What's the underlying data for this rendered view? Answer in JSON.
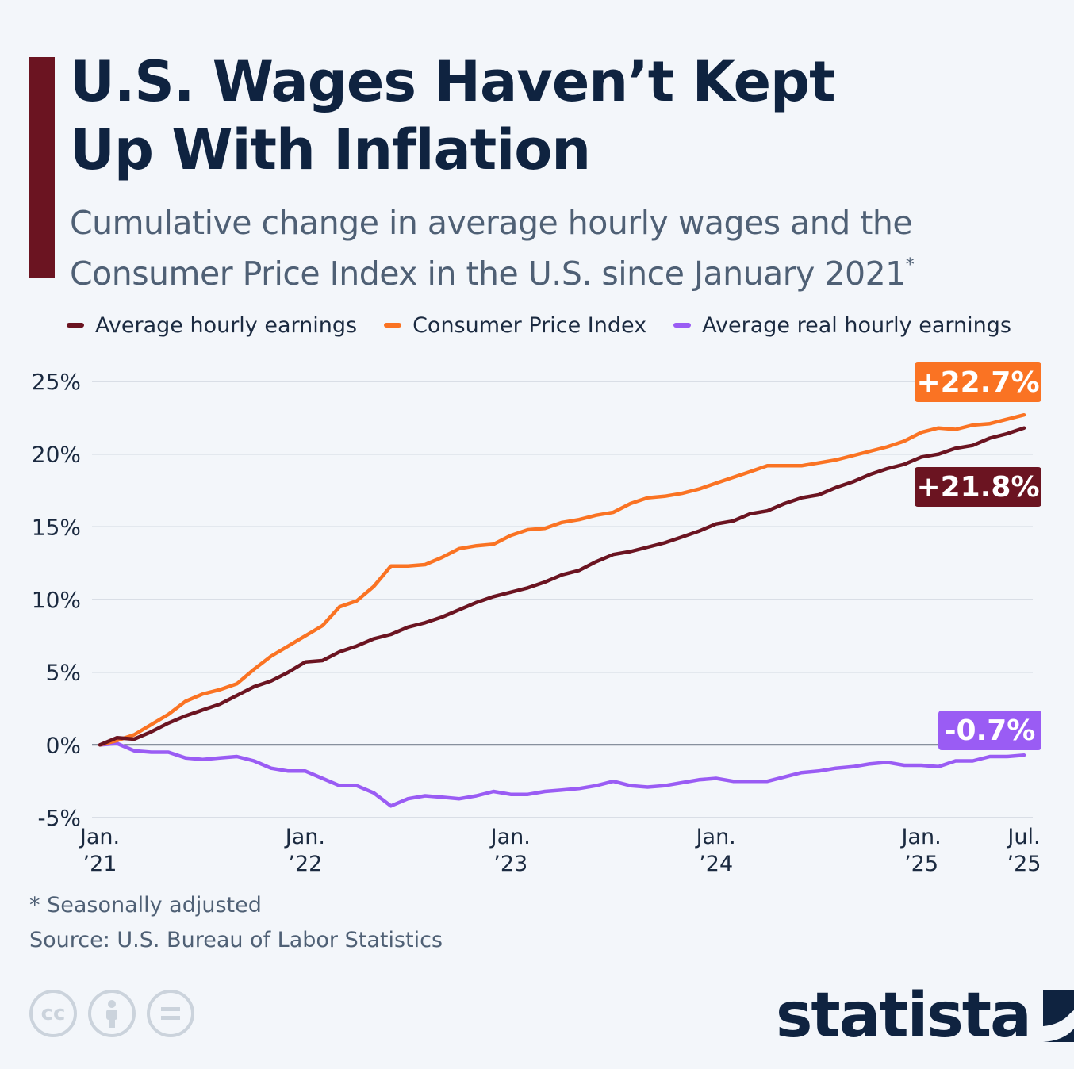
{
  "header": {
    "title_line1": "U.S. Wages Haven’t Kept",
    "title_line2": "Up With Inflation",
    "subtitle_line1": "Cumulative change in average hourly wages and the",
    "subtitle_line2": "Consumer Price Index in the U.S. since January 2021",
    "subtitle_marker": "*"
  },
  "colors": {
    "accent": "#6b1421",
    "title": "#0f2340",
    "wages": "#6b1421",
    "cpi": "#fa7323",
    "real": "#9a5cf4",
    "grid": "#c9d0d9",
    "zero_line": "#1b2a40"
  },
  "footer": {
    "footnote": "* Seasonally adjusted",
    "source": "Source: U.S. Bureau of Labor Statistics",
    "brand": "statista",
    "license_icons": [
      "cc-icon",
      "attribution-icon",
      "no-derivatives-icon"
    ]
  },
  "chart_data": {
    "type": "line",
    "ylim": [
      -5,
      25
    ],
    "yticks": [
      25,
      20,
      15,
      10,
      5,
      0,
      -5
    ],
    "ytick_labels": [
      "25%",
      "20%",
      "15%",
      "10%",
      "5%",
      "0%",
      "-5%"
    ],
    "xtick_labels": [
      {
        "line1": "Jan.",
        "line2": "’21",
        "index": 0
      },
      {
        "line1": "Jan.",
        "line2": "’22",
        "index": 12
      },
      {
        "line1": "Jan.",
        "line2": "’23",
        "index": 24
      },
      {
        "line1": "Jan.",
        "line2": "’24",
        "index": 36
      },
      {
        "line1": "Jan.",
        "line2": "’25",
        "index": 48
      },
      {
        "line1": "Jul.",
        "line2": "’25",
        "index": 54
      }
    ],
    "x": [
      "2021-01",
      "2021-02",
      "2021-03",
      "2021-04",
      "2021-05",
      "2021-06",
      "2021-07",
      "2021-08",
      "2021-09",
      "2021-10",
      "2021-11",
      "2021-12",
      "2022-01",
      "2022-02",
      "2022-03",
      "2022-04",
      "2022-05",
      "2022-06",
      "2022-07",
      "2022-08",
      "2022-09",
      "2022-10",
      "2022-11",
      "2022-12",
      "2023-01",
      "2023-02",
      "2023-03",
      "2023-04",
      "2023-05",
      "2023-06",
      "2023-07",
      "2023-08",
      "2023-09",
      "2023-10",
      "2023-11",
      "2023-12",
      "2024-01",
      "2024-02",
      "2024-03",
      "2024-04",
      "2024-05",
      "2024-06",
      "2024-07",
      "2024-08",
      "2024-09",
      "2024-10",
      "2024-11",
      "2024-12",
      "2025-01",
      "2025-02",
      "2025-03",
      "2025-04",
      "2025-05",
      "2025-06",
      "2025-07"
    ],
    "series": [
      {
        "name": "Average hourly earnings",
        "color": "#6b1421",
        "end_label": "+21.8%",
        "values": [
          0,
          0.5,
          0.4,
          0.9,
          1.5,
          2.0,
          2.4,
          2.8,
          3.4,
          4.0,
          4.4,
          5.0,
          5.7,
          5.8,
          6.4,
          6.8,
          7.3,
          7.6,
          8.1,
          8.4,
          8.8,
          9.3,
          9.8,
          10.2,
          10.5,
          10.8,
          11.2,
          11.7,
          12.0,
          12.6,
          13.1,
          13.3,
          13.6,
          13.9,
          14.3,
          14.7,
          15.2,
          15.4,
          15.9,
          16.1,
          16.6,
          17.0,
          17.2,
          17.7,
          18.1,
          18.6,
          19.0,
          19.3,
          19.8,
          20.0,
          20.4,
          20.6,
          21.1,
          21.4,
          21.8
        ]
      },
      {
        "name": "Consumer Price Index",
        "color": "#fa7323",
        "end_label": "+22.7%",
        "values": [
          0,
          0.3,
          0.7,
          1.4,
          2.1,
          3.0,
          3.5,
          3.8,
          4.2,
          5.2,
          6.1,
          6.8,
          7.5,
          8.2,
          9.5,
          9.9,
          10.9,
          12.3,
          12.3,
          12.4,
          12.9,
          13.5,
          13.7,
          13.8,
          14.4,
          14.8,
          14.9,
          15.3,
          15.5,
          15.8,
          16.0,
          16.6,
          17.0,
          17.1,
          17.3,
          17.6,
          18.0,
          18.4,
          18.8,
          19.2,
          19.2,
          19.2,
          19.4,
          19.6,
          19.9,
          20.2,
          20.5,
          20.9,
          21.5,
          21.8,
          21.7,
          22.0,
          22.1,
          22.4,
          22.7
        ]
      },
      {
        "name": "Average real hourly earnings",
        "color": "#9a5cf4",
        "end_label": "-0.7%",
        "values": [
          0,
          0.1,
          -0.4,
          -0.5,
          -0.5,
          -0.9,
          -1.0,
          -0.9,
          -0.8,
          -1.1,
          -1.6,
          -1.8,
          -1.8,
          -2.3,
          -2.8,
          -2.8,
          -3.3,
          -4.2,
          -3.7,
          -3.5,
          -3.6,
          -3.7,
          -3.5,
          -3.2,
          -3.4,
          -3.4,
          -3.2,
          -3.1,
          -3.0,
          -2.8,
          -2.5,
          -2.8,
          -2.9,
          -2.8,
          -2.6,
          -2.4,
          -2.3,
          -2.5,
          -2.5,
          -2.5,
          -2.2,
          -1.9,
          -1.8,
          -1.6,
          -1.5,
          -1.3,
          -1.2,
          -1.4,
          -1.4,
          -1.5,
          -1.1,
          -1.1,
          -0.8,
          -0.8,
          -0.7
        ]
      }
    ],
    "grid": true,
    "legend_position": "top"
  }
}
